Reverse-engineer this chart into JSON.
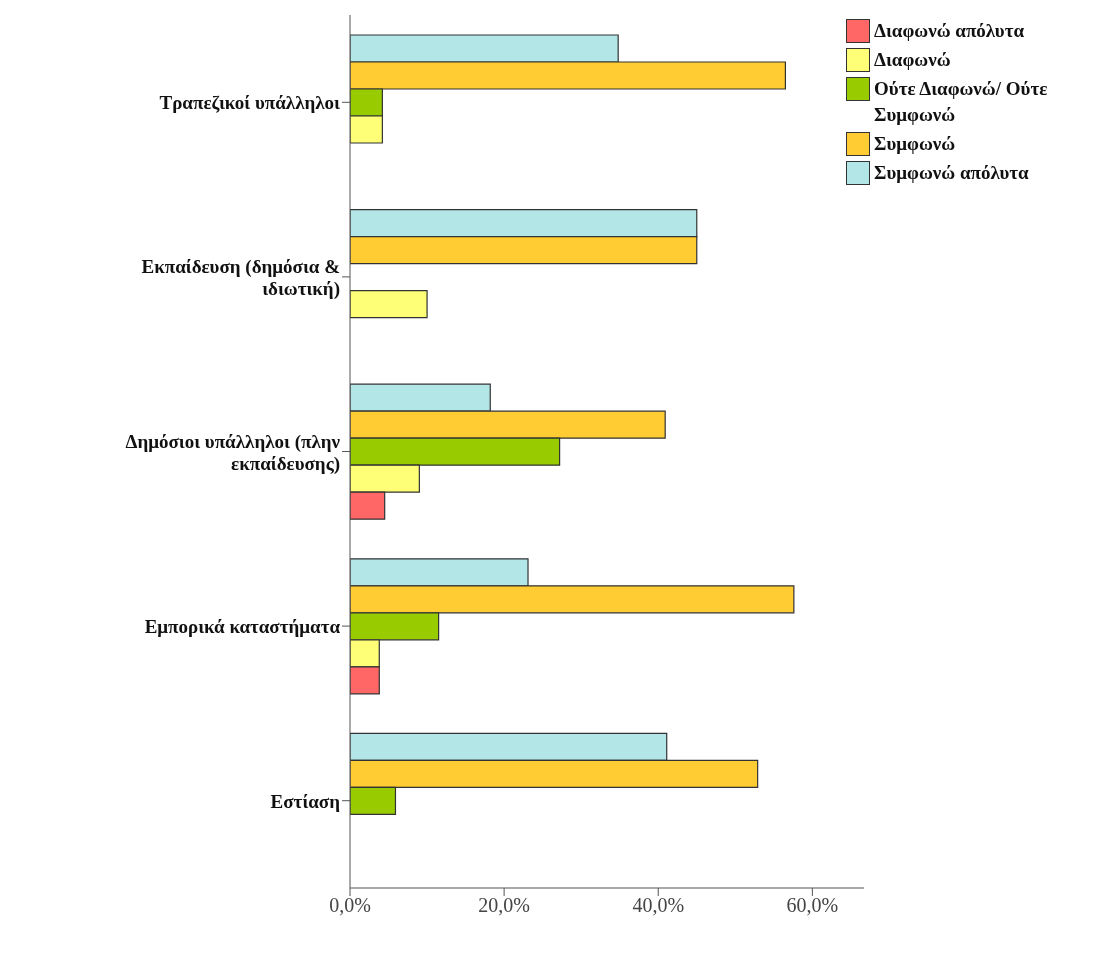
{
  "chart_data": {
    "type": "bar",
    "orientation": "horizontal",
    "categories": [
      "Τραπεζικοί υπάλληλοι",
      "Εκπαίδευση (δημόσια & ιδιωτική)",
      "Δημόσιοι υπάλληλοι (πλην εκπαίδευσης)",
      "Εμπορικά καταστήματα",
      "Εστίαση"
    ],
    "series": [
      {
        "name": "Διαφωνώ απόλυτα",
        "color": "#ff6666",
        "values": [
          0,
          0,
          4.5,
          3.8,
          0
        ]
      },
      {
        "name": "Διαφωνώ",
        "color": "#ffff77",
        "values": [
          4.2,
          10.0,
          9.0,
          3.8,
          0
        ]
      },
      {
        "name": "Ούτε Διαφωνώ/ Ούτε Συμφωνώ",
        "color": "#99cc00",
        "values": [
          4.2,
          0,
          27.2,
          11.5,
          5.9
        ]
      },
      {
        "name": "Συμφωνώ",
        "color": "#ffcc33",
        "values": [
          56.5,
          45.0,
          40.9,
          57.6,
          52.9
        ]
      },
      {
        "name": "Συμφωνώ απόλυτα",
        "color": "#b3e6e6",
        "values": [
          34.8,
          45.0,
          18.2,
          23.1,
          41.1
        ]
      }
    ],
    "xlim": [
      0,
      66.7
    ],
    "xticks": [
      {
        "value": 0,
        "label": "0,0%"
      },
      {
        "value": 20,
        "label": "20,0%"
      },
      {
        "value": 40,
        "label": "40,0%"
      },
      {
        "value": 60,
        "label": "60,0%"
      }
    ],
    "grid": false,
    "legend": "top right"
  }
}
